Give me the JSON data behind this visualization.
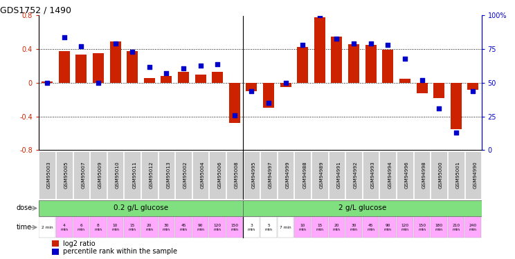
{
  "title": "GDS1752 / 1490",
  "samples": [
    "GSM95003",
    "GSM95005",
    "GSM95007",
    "GSM95009",
    "GSM95010",
    "GSM95011",
    "GSM95012",
    "GSM95013",
    "GSM95002",
    "GSM95004",
    "GSM95006",
    "GSM95008",
    "GSM94995",
    "GSM94997",
    "GSM94999",
    "GSM94988",
    "GSM94989",
    "GSM94991",
    "GSM94992",
    "GSM94993",
    "GSM94994",
    "GSM94996",
    "GSM94998",
    "GSM95000",
    "GSM95001",
    "GSM94990"
  ],
  "log2_ratio": [
    0.02,
    0.38,
    0.34,
    0.35,
    0.49,
    0.38,
    0.06,
    0.08,
    0.13,
    0.1,
    0.13,
    -0.48,
    -0.1,
    -0.3,
    -0.05,
    0.43,
    0.78,
    0.55,
    0.46,
    0.45,
    0.39,
    0.05,
    -0.12,
    -0.18,
    -0.55,
    -0.08
  ],
  "percentile_rank": [
    50,
    84,
    77,
    50,
    79,
    73,
    62,
    57,
    61,
    63,
    64,
    26,
    44,
    35,
    50,
    78,
    100,
    83,
    79,
    79,
    78,
    68,
    52,
    31,
    13,
    44
  ],
  "bar_color": "#cc2200",
  "dot_color": "#0000cc",
  "ylim": [
    -0.8,
    0.8
  ],
  "yticks": [
    -0.8,
    -0.4,
    0.0,
    0.4,
    0.8
  ],
  "y2ticks_pct": [
    0,
    25,
    50,
    75,
    100
  ],
  "y2ticklabels": [
    "0",
    "25",
    "50",
    "75",
    "100%"
  ],
  "hlines": [
    0.4,
    0.0,
    -0.4
  ],
  "dose_label1": "0.2 g/L glucose",
  "dose_label2": "2 g/L glucose",
  "dose_color": "#80e080",
  "time_labels": [
    "2 min",
    "4\nmin",
    "6\nmin",
    "8\nmin",
    "10\nmin",
    "15\nmin",
    "20\nmin",
    "30\nmin",
    "45\nmin",
    "90\nmin",
    "120\nmin",
    "150\nmin",
    "3\nmin",
    "5\nmin",
    "7 min",
    "10\nmin",
    "15\nmin",
    "20\nmin",
    "30\nmin",
    "45\nmin",
    "90\nmin",
    "120\nmin",
    "150\nmin",
    "180\nmin",
    "210\nmin",
    "240\nmin"
  ],
  "time_bg": [
    "#ffffff",
    "#ffaaff",
    "#ffaaff",
    "#ffaaff",
    "#ffaaff",
    "#ffaaff",
    "#ffaaff",
    "#ffaaff",
    "#ffaaff",
    "#ffaaff",
    "#ffaaff",
    "#ffaaff",
    "#ffffff",
    "#ffffff",
    "#ffffff",
    "#ffaaff",
    "#ffaaff",
    "#ffaaff",
    "#ffaaff",
    "#ffaaff",
    "#ffaaff",
    "#ffaaff",
    "#ffaaff",
    "#ffaaff",
    "#ffaaff",
    "#ffaaff"
  ],
  "n_group1": 12,
  "n_group2": 14,
  "sample_bg": "#d0d0d0"
}
